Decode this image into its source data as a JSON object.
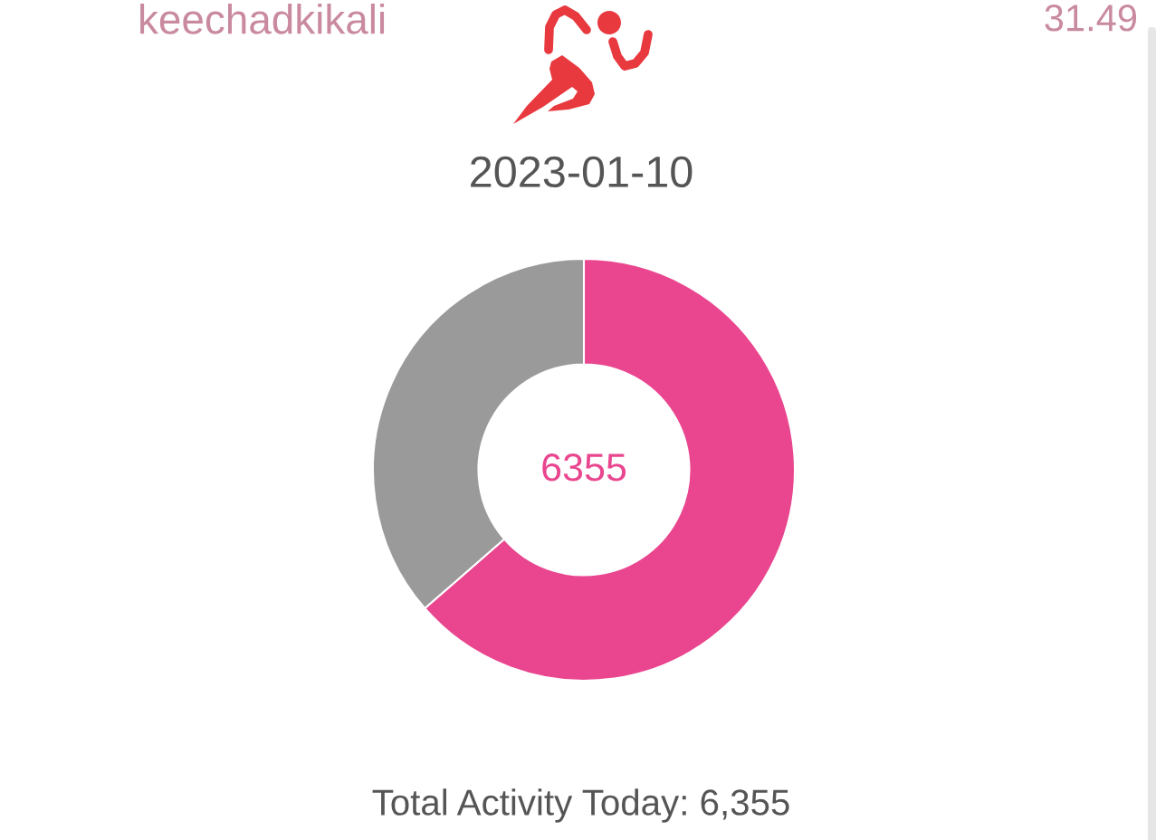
{
  "chart_data": {
    "type": "donut",
    "title": "2023-01-10",
    "categories": [
      null,
      null
    ],
    "values": [
      63.6,
      36.4
    ],
    "colors": [
      "#e9468f",
      "#9a9a9a"
    ],
    "annotations": [
      "keechadkikali",
      "31.49",
      "6355",
      "Total Activity Today: 6,355"
    ]
  }
}
